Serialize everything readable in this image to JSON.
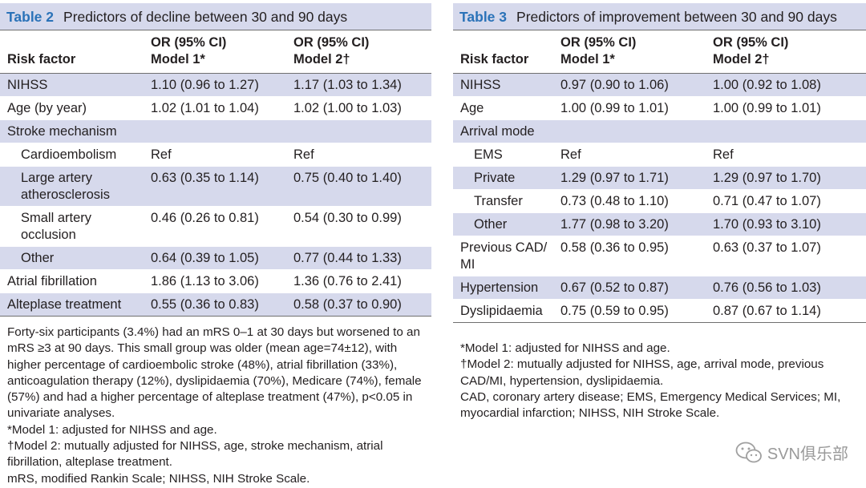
{
  "table2": {
    "number": "Table 2",
    "title": "Predictors of decline between 30 and 90 days",
    "head": {
      "risk_factor": "Risk factor",
      "col1_line1": "OR (95% CI)",
      "col1_line2": "Model 1*",
      "col2_line1": "OR (95% CI)",
      "col2_line2": "Model 2†"
    },
    "rows": [
      {
        "factor": "NIHSS",
        "m1": "1.10 (0.96 to 1.27)",
        "m2": "1.17 (1.03 to 1.34)"
      },
      {
        "factor": "Age (by year)",
        "m1": "1.02 (1.01 to 1.04)",
        "m2": "1.02 (1.00 to 1.03)"
      },
      {
        "factor": "Stroke mechanism",
        "m1": "",
        "m2": ""
      },
      {
        "factor": "Cardioembolism",
        "m1": "Ref",
        "m2": "Ref"
      },
      {
        "factor": "Large artery atherosclerosis",
        "m1": "0.63 (0.35 to 1.14)",
        "m2": "0.75 (0.40 to 1.40)"
      },
      {
        "factor": "Small artery occlusion",
        "m1": "0.46 (0.26 to 0.81)",
        "m2": "0.54 (0.30 to 0.99)"
      },
      {
        "factor": "Other",
        "m1": "0.64 (0.39 to 1.05)",
        "m2": "0.77 (0.44 to 1.33)"
      },
      {
        "factor": "Atrial fibrillation",
        "m1": "1.86 (1.13 to 3.06)",
        "m2": "1.36 (0.76 to 2.41)"
      },
      {
        "factor": "Alteplase treatment",
        "m1": "0.55 (0.36 to 0.83)",
        "m2": "0.58 (0.37 to 0.90)"
      }
    ],
    "notes": [
      "Forty-six participants (3.4%) had an mRS 0–1 at 30 days but worsened to an mRS ≥3 at 90 days. This small group was older (mean age=74±12), with higher percentage of cardioembolic stroke (48%), atrial fibrillation (33%), anticoagulation therapy (12%), dyslipidaemia (70%), Medicare (74%), female (57%) and had a higher percentage of alteplase treatment (47%), p<0.05 in univariate analyses.",
      "*Model 1: adjusted for NIHSS and age.",
      "†Model 2: mutually adjusted for NIHSS, age, stroke mechanism, atrial fibrillation, alteplase treatment.",
      "mRS, modified Rankin Scale; NIHSS, NIH Stroke Scale."
    ]
  },
  "table3": {
    "number": "Table 3",
    "title": "Predictors of improvement between 30 and 90 days",
    "head": {
      "risk_factor": "Risk factor",
      "col1_line1": "OR (95% CI)",
      "col1_line2": "Model 1*",
      "col2_line1": "OR (95% CI)",
      "col2_line2": "Model 2†"
    },
    "rows": [
      {
        "factor": "NIHSS",
        "m1": "0.97 (0.90 to 1.06)",
        "m2": "1.00 (0.92 to 1.08)"
      },
      {
        "factor": "Age",
        "m1": "1.00 (0.99 to 1.01)",
        "m2": "1.00 (0.99 to 1.01)"
      },
      {
        "factor": "Arrival mode",
        "m1": "",
        "m2": ""
      },
      {
        "factor": "EMS",
        "m1": "Ref",
        "m2": "Ref"
      },
      {
        "factor": "Private",
        "m1": "1.29 (0.97 to 1.71)",
        "m2": "1.29 (0.97 to 1.70)"
      },
      {
        "factor": "Transfer",
        "m1": "0.73 (0.48 to 1.10)",
        "m2": "0.71 (0.47 to 1.07)"
      },
      {
        "factor": "Other",
        "m1": "1.77 (0.98 to 3.20)",
        "m2": "1.70 (0.93 to 3.10)"
      },
      {
        "factor": "Previous CAD/ MI",
        "m1": "0.58 (0.36 to 0.95)",
        "m2": "0.63 (0.37 to 1.07)"
      },
      {
        "factor": "Hypertension",
        "m1": "0.67 (0.52 to 0.87)",
        "m2": "0.76 (0.56 to 1.03)"
      },
      {
        "factor": "Dyslipidaemia",
        "m1": "0.75 (0.59 to 0.95)",
        "m2": "0.87 (0.67 to 1.14)"
      }
    ],
    "notes": [
      "*Model 1: adjusted for NIHSS and age.",
      "†Model 2: mutually adjusted for NIHSS, age, arrival mode, previous CAD/MI, hypertension, dyslipidaemia.",
      "CAD, coronary artery disease; EMS, Emergency Medical Services; MI, myocardial infarction; NIHSS, NIH Stroke Scale."
    ]
  },
  "watermark": {
    "text": "SVN俱乐部",
    "icon": "wechat-icon"
  },
  "colors": {
    "shade": "#d6d9ec",
    "table_number": "#2a72b8",
    "text": "#231f20"
  }
}
